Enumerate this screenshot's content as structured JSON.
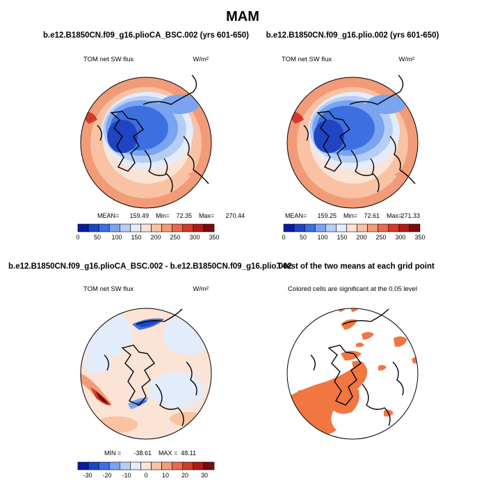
{
  "figure": {
    "title": "MAM",
    "colors": {
      "abs_scale": [
        "#081d9c",
        "#1f45c2",
        "#3d6fe0",
        "#7aa4f0",
        "#b6cdf6",
        "#e3ecfb",
        "#fbe3d6",
        "#f8c2a3",
        "#f29b78",
        "#e86a4c",
        "#d33a2a",
        "#b01a16",
        "#7a0b0b"
      ],
      "diff_scale": [
        "#081d9c",
        "#1f45c2",
        "#3d6fe0",
        "#7aa4f0",
        "#b6cdf6",
        "#e3ecfb",
        "#fbe3d6",
        "#f8c2a3",
        "#f29b78",
        "#e86a4c",
        "#d33a2a",
        "#b01a16",
        "#7a0b0b"
      ],
      "significant": "#f07642",
      "coast": "#000000"
    }
  },
  "chart_data": [
    {
      "type": "heatmap",
      "projection": "north polar stereographic",
      "title": "b.e12.B1850CN.f09_g16.plioCA_BSC.002 (yrs 601-650)",
      "left_label": "TOM net SW flux",
      "right_label": "W/m²",
      "stats": {
        "mean_label": "MEAN=",
        "mean": "159.49",
        "min_label": "Min=",
        "min": "72.35",
        "max_label": "Max=",
        "max": "270.44"
      },
      "colorbar_ticks": [
        "0",
        "50",
        "100",
        "150",
        "200",
        "250",
        "300",
        "350"
      ],
      "range": [
        0,
        350
      ]
    },
    {
      "type": "heatmap",
      "projection": "north polar stereographic",
      "title": "b.e12.B1850CN.f09_g16.plio.002 (yrs 601-650)",
      "left_label": "TOM net SW flux",
      "right_label": "W/m²",
      "stats": {
        "mean_label": "MEAN=",
        "mean": "159.25",
        "min_label": "Min=",
        "min": "72.61",
        "max_label": "Max=",
        "max": "271.33"
      },
      "colorbar_ticks": [
        "0",
        "50",
        "100",
        "150",
        "200",
        "250",
        "300",
        "350"
      ],
      "range": [
        0,
        350
      ]
    },
    {
      "type": "heatmap",
      "projection": "north polar stereographic",
      "title": "b.e12.B1850CN.f09_g16.plioCA_BSC.002 - b.e12.B1850CN.f09_g16.plio.002",
      "left_label": "TOM net SW flux",
      "right_label": "W/m²",
      "stats": {
        "min_label": "MIN =",
        "min": "-38.61",
        "max_label": "MAX =",
        "max": "48.11"
      },
      "colorbar_ticks": [
        "-30",
        "-20",
        "-10",
        "0",
        "10",
        "20",
        "30"
      ],
      "range": [
        -35,
        35
      ]
    },
    {
      "type": "heatmap",
      "projection": "north polar stereographic",
      "title": "T-test of the two means at each grid point",
      "left_label": "Colored cells are significant at the 0.05 level"
    }
  ]
}
